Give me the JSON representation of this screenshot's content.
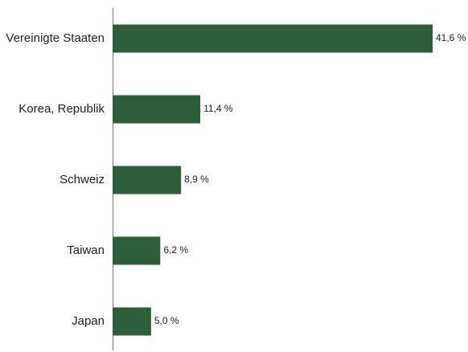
{
  "chart_data": {
    "type": "bar",
    "orientation": "horizontal",
    "categories": [
      "Vereinigte Staaten",
      "Korea, Republik",
      "Schweiz",
      "Taiwan",
      "Japan"
    ],
    "values": [
      41.6,
      11.4,
      8.9,
      6.2,
      5.0
    ],
    "value_labels": [
      "41,6 %",
      "11,4 %",
      "8,9 %",
      "6,2 %",
      "5,0 %"
    ],
    "title": "",
    "xlabel": "",
    "ylabel": "",
    "xlim": [
      0,
      41.6
    ],
    "grid": false,
    "legend": "none",
    "bar_color": "#2d5e3a"
  }
}
